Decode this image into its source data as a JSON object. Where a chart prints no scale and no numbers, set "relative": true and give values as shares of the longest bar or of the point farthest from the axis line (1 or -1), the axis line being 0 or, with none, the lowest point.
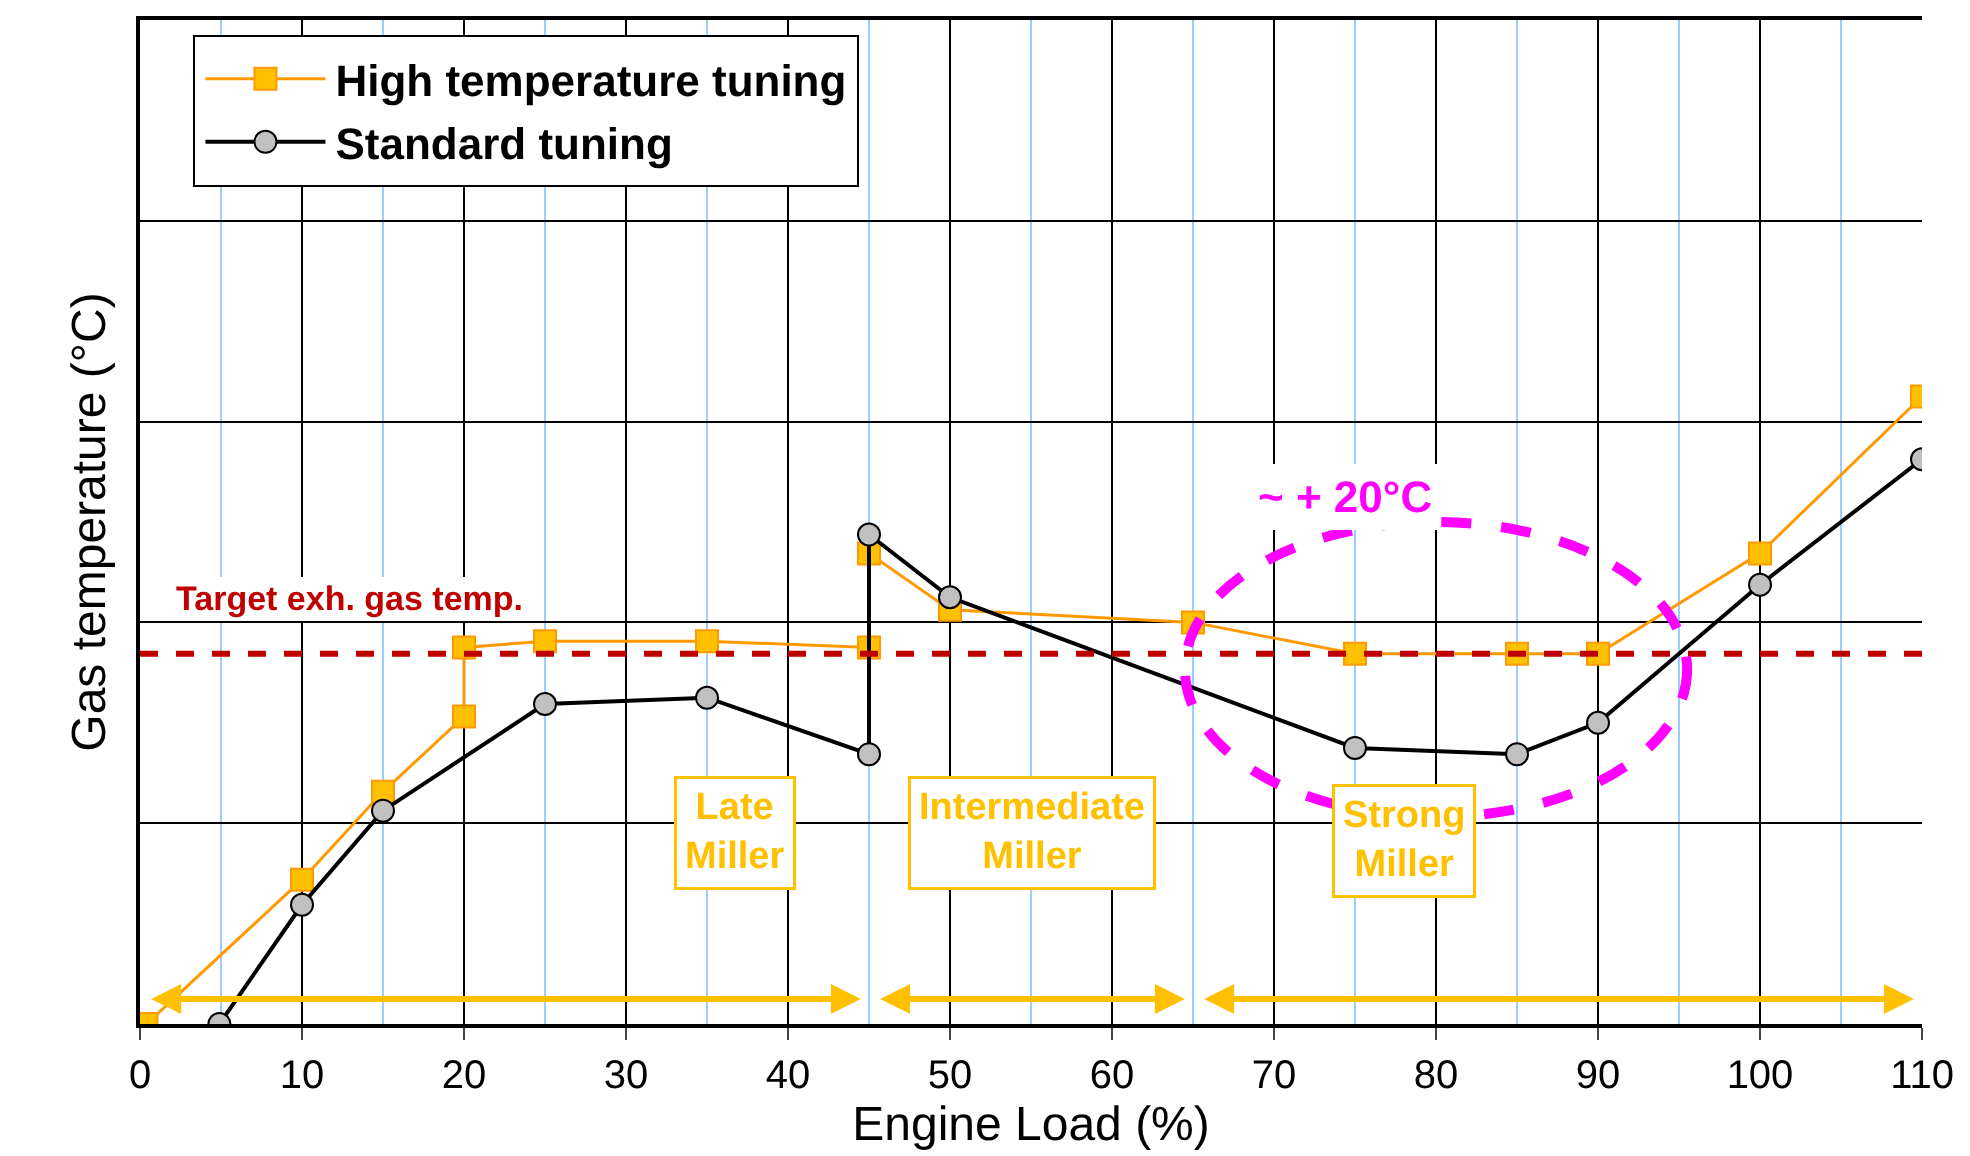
{
  "chart_data": {
    "type": "line",
    "relative": true,
    "xlabel": "Engine Load (%)",
    "ylabel": "Gas temperature (°C)",
    "xlim": [
      0,
      110
    ],
    "xticks": [
      0,
      {
        "value": 5,
        "label": null
      },
      10,
      {
        "value": 15,
        "label": null
      },
      20,
      {
        "value": 25,
        "label": null
      },
      30,
      {
        "value": 35,
        "label": null
      },
      40,
      {
        "value": 45,
        "label": null
      },
      50,
      {
        "value": 55,
        "label": null
      },
      60,
      {
        "value": 65,
        "label": null
      },
      70,
      {
        "value": 75,
        "label": null
      },
      80,
      {
        "value": 85,
        "label": null
      },
      90,
      {
        "value": 95,
        "label": null
      },
      100,
      {
        "value": 105,
        "label": null
      },
      110
    ],
    "series": [
      {
        "name": "High temperature tuning",
        "color": "#ff9900",
        "marker": "square",
        "x": [
          0.4,
          10,
          15,
          20,
          20,
          25,
          35,
          45,
          45,
          50,
          65,
          75,
          85,
          90,
          100,
          110
        ],
        "values": [
          0,
          0.23,
          0.37,
          0.49,
          0.6,
          0.61,
          0.61,
          0.6,
          0.75,
          0.66,
          0.64,
          0.59,
          0.59,
          0.59,
          0.75,
          1
        ]
      },
      {
        "name": "Standard tuning",
        "color": "#000000",
        "marker": "circle",
        "x": [
          4.9,
          10,
          15,
          25,
          35,
          45,
          45,
          50,
          75,
          85,
          90,
          100,
          110
        ],
        "values": [
          0,
          0.19,
          0.34,
          0.51,
          0.52,
          0.43,
          0.78,
          0.68,
          0.44,
          0.43,
          0.48,
          0.7,
          0.9
        ]
      }
    ],
    "ref_lines": [
      {
        "axis": "y",
        "value": 0.59,
        "label": "Target exh. gas temp.",
        "color": "#c00000",
        "line_style": "dashed"
      }
    ],
    "annotations": [
      "Late\nMiller",
      "Intermediate\nMiller",
      "Strong\nMiller",
      "~ + 20°C"
    ],
    "grid": true,
    "legend": "top left"
  }
}
